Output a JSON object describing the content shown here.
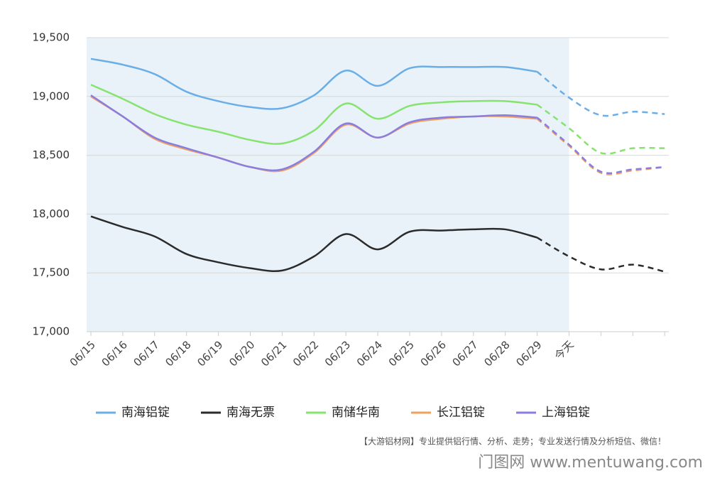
{
  "chart_data": {
    "type": "line",
    "categories": [
      "06/15",
      "06/16",
      "06/17",
      "06/18",
      "06/19",
      "06/20",
      "06/21",
      "06/22",
      "06/23",
      "06/24",
      "06/25",
      "06/26",
      "06/27",
      "06/28",
      "06/29",
      "今天",
      null,
      null,
      null
    ],
    "dashed_from": 14,
    "ylim": [
      17000,
      19500
    ],
    "yticks": [
      {
        "value": 17000,
        "label": "17,000"
      },
      {
        "value": 17500,
        "label": "17,500"
      },
      {
        "value": 18000,
        "label": "18,000"
      },
      {
        "value": 18500,
        "label": "18,500"
      },
      {
        "value": 19000,
        "label": "19,000"
      },
      {
        "value": 19500,
        "label": "19,500"
      }
    ],
    "grid": true,
    "series": [
      {
        "name": "南海铝锭",
        "color": "#6aaee8",
        "values": [
          19320,
          19270,
          19190,
          19040,
          18960,
          18910,
          18900,
          19010,
          19220,
          19090,
          19240,
          19250,
          19250,
          19250,
          19210,
          18990,
          18840,
          18870,
          18850
        ]
      },
      {
        "name": "南海无票",
        "color": "#2b2b2b",
        "values": [
          17980,
          17890,
          17810,
          17660,
          17590,
          17540,
          17520,
          17640,
          17830,
          17700,
          17850,
          17860,
          17870,
          17870,
          17800,
          17640,
          17530,
          17570,
          17510
        ]
      },
      {
        "name": "南储华南",
        "color": "#86e36d",
        "values": [
          19100,
          18980,
          18850,
          18760,
          18700,
          18630,
          18600,
          18710,
          18940,
          18810,
          18920,
          18950,
          18960,
          18960,
          18930,
          18730,
          18520,
          18560,
          18560
        ]
      },
      {
        "name": "长江铝锭",
        "color": "#f0a160",
        "values": [
          19000,
          18830,
          18640,
          18550,
          18480,
          18400,
          18370,
          18520,
          18760,
          18650,
          18770,
          18810,
          18830,
          18830,
          18810,
          18580,
          18350,
          18370,
          18400
        ]
      },
      {
        "name": "上海铝锭",
        "color": "#8a7de0",
        "values": [
          19010,
          18830,
          18650,
          18560,
          18480,
          18400,
          18380,
          18530,
          18770,
          18650,
          18780,
          18820,
          18830,
          18840,
          18820,
          18590,
          18360,
          18380,
          18400
        ]
      }
    ],
    "footnote": "【大游铝材网】专业提供铝行情、分析、走势；专业发送行情及分析短信、微信！",
    "watermark": "门图网 www.mentuwang.com"
  }
}
